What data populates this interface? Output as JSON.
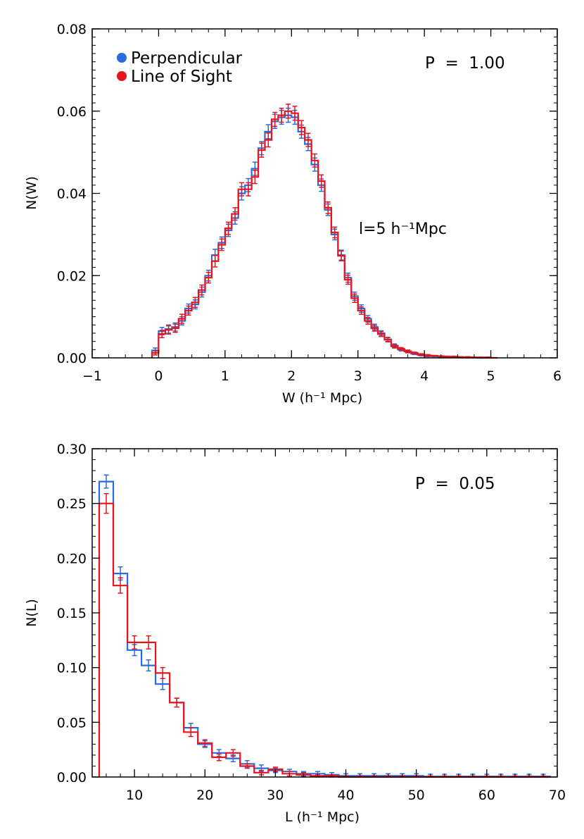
{
  "chart_data": [
    {
      "type": "step",
      "title": "",
      "xlabel": "W (h⁻¹ Mpc)",
      "ylabel": "N(W)",
      "xlim": [
        -1,
        6
      ],
      "ylim": [
        0,
        0.08
      ],
      "xticks": [
        "−1",
        "0",
        "1",
        "2",
        "3",
        "4",
        "5",
        "6"
      ],
      "yticks": [
        "0.00",
        "0.02",
        "0.04",
        "0.06",
        "0.08"
      ],
      "bin_width": 0.1,
      "legend": {
        "placement": "top-left",
        "entries": [
          "Perpendicular",
          "Line of Sight"
        ]
      },
      "annotations": [
        "P  =  1.00",
        "l=5 h⁻¹Mpc"
      ],
      "series": [
        {
          "name": "Perpendicular",
          "color": "#2b6be0",
          "edges": [
            -0.1,
            0.0,
            0.1,
            0.2,
            0.3,
            0.4,
            0.5,
            0.6,
            0.7,
            0.8,
            0.9,
            1.0,
            1.1,
            1.2,
            1.3,
            1.4,
            1.5,
            1.6,
            1.7,
            1.8,
            1.9,
            2.0,
            2.1,
            2.2,
            2.3,
            2.4,
            2.5,
            2.6,
            2.7,
            2.8,
            2.9,
            3.0,
            3.1,
            3.2,
            3.3,
            3.4,
            3.5,
            3.6,
            3.7,
            3.8,
            3.9,
            4.0,
            4.1,
            4.2,
            4.3,
            4.4,
            4.5,
            4.6,
            4.7,
            4.8,
            4.9,
            5.0
          ],
          "values": [
            0.0018,
            0.0065,
            0.007,
            0.0075,
            0.009,
            0.012,
            0.013,
            0.016,
            0.02,
            0.025,
            0.028,
            0.031,
            0.034,
            0.04,
            0.042,
            0.046,
            0.051,
            0.055,
            0.0575,
            0.0585,
            0.059,
            0.0585,
            0.055,
            0.052,
            0.047,
            0.042,
            0.036,
            0.03,
            0.025,
            0.0195,
            0.015,
            0.012,
            0.0095,
            0.0075,
            0.006,
            0.0045,
            0.003,
            0.002,
            0.0015,
            0.001,
            0.0007,
            0.0005,
            0.0004,
            0.0003,
            0.0002,
            0.0002,
            0.0001,
            0.0001,
            0.0001,
            0.0,
            0.0
          ],
          "errors": [
            0.0006,
            0.0009,
            0.001,
            0.001,
            0.001,
            0.0011,
            0.0011,
            0.0012,
            0.0013,
            0.0014,
            0.0014,
            0.0015,
            0.0015,
            0.0016,
            0.0016,
            0.0016,
            0.0016,
            0.0017,
            0.0017,
            0.0017,
            0.0017,
            0.0017,
            0.0016,
            0.0016,
            0.0016,
            0.0015,
            0.0014,
            0.0013,
            0.0012,
            0.0011,
            0.001,
            0.0009,
            0.0008,
            0.0007,
            0.0006,
            0.0005,
            0.0004,
            0.0003,
            0.0003,
            0.0002,
            0.0002,
            0.0002,
            0.0001,
            0.0001,
            0.0001,
            0.0001,
            0.0001,
            0.0001,
            0.0001,
            0.0,
            0.0
          ]
        },
        {
          "name": "Line of Sight",
          "color": "#e8141b",
          "edges": [
            -0.1,
            0.0,
            0.1,
            0.2,
            0.3,
            0.4,
            0.5,
            0.6,
            0.7,
            0.8,
            0.9,
            1.0,
            1.1,
            1.2,
            1.3,
            1.4,
            1.5,
            1.6,
            1.7,
            1.8,
            1.9,
            2.0,
            2.1,
            2.2,
            2.3,
            2.4,
            2.5,
            2.6,
            2.7,
            2.8,
            2.9,
            3.0,
            3.1,
            3.2,
            3.3,
            3.4,
            3.5,
            3.6,
            3.7,
            3.8,
            3.9,
            4.0,
            4.1,
            4.2,
            4.3,
            4.4,
            4.5,
            4.6,
            4.7,
            4.8,
            4.9,
            5.0,
            5.1
          ],
          "values": [
            0.0012,
            0.0058,
            0.0068,
            0.0072,
            0.0095,
            0.0115,
            0.0135,
            0.0165,
            0.0195,
            0.0235,
            0.0275,
            0.0315,
            0.035,
            0.041,
            0.041,
            0.044,
            0.0505,
            0.053,
            0.058,
            0.059,
            0.06,
            0.0595,
            0.056,
            0.053,
            0.048,
            0.043,
            0.0365,
            0.0305,
            0.0248,
            0.019,
            0.0145,
            0.0115,
            0.009,
            0.0072,
            0.0058,
            0.0044,
            0.0028,
            0.0022,
            0.0016,
            0.0012,
            0.0008,
            0.0006,
            0.0005,
            0.0004,
            0.0003,
            0.0003,
            0.0002,
            0.0002,
            0.0001,
            0.0001,
            0.0001,
            0.0
          ],
          "errors": [
            0.0005,
            0.0009,
            0.001,
            0.001,
            0.0011,
            0.0011,
            0.0012,
            0.0012,
            0.0013,
            0.0014,
            0.0014,
            0.0015,
            0.0015,
            0.0016,
            0.0016,
            0.0016,
            0.0017,
            0.0017,
            0.0017,
            0.0017,
            0.0017,
            0.0017,
            0.0017,
            0.0016,
            0.0016,
            0.0015,
            0.0014,
            0.0013,
            0.0012,
            0.0011,
            0.001,
            0.0009,
            0.0008,
            0.0007,
            0.0006,
            0.0005,
            0.0004,
            0.0003,
            0.0003,
            0.0002,
            0.0002,
            0.0002,
            0.0001,
            0.0001,
            0.0001,
            0.0001,
            0.0001,
            0.0001,
            0.0001,
            0.0001,
            0.0001,
            0.0
          ]
        }
      ]
    },
    {
      "type": "step",
      "title": "",
      "xlabel": "L (h⁻¹ Mpc)",
      "ylabel": "N(L)",
      "xlim": [
        4,
        70
      ],
      "ylim": [
        0,
        0.3
      ],
      "xticks": [
        "10",
        "20",
        "30",
        "40",
        "50",
        "60",
        "70"
      ],
      "yticks": [
        "0.00",
        "0.05",
        "0.10",
        "0.15",
        "0.20",
        "0.25",
        "0.30"
      ],
      "bin_width": 2,
      "annotations": [
        "P  =  0.05"
      ],
      "series": [
        {
          "name": "Perpendicular",
          "color": "#2b6be0",
          "edges": [
            5,
            7,
            9,
            11,
            13,
            15,
            17,
            19,
            21,
            23,
            25,
            27,
            29,
            31,
            33,
            35,
            37,
            39,
            41,
            43,
            45,
            47,
            49,
            51,
            53,
            55,
            57,
            59,
            61,
            63,
            65,
            67,
            69
          ],
          "values": [
            0.27,
            0.186,
            0.116,
            0.102,
            0.085,
            0.068,
            0.045,
            0.03,
            0.022,
            0.017,
            0.012,
            0.008,
            0.006,
            0.005,
            0.003,
            0.003,
            0.002,
            0.001,
            0.001,
            0.001,
            0.001,
            0.001,
            0.001,
            0.0005,
            0.0005,
            0.0005,
            0.0005,
            0.0005,
            0.0005,
            0.0005,
            0.0005,
            0.0005
          ],
          "errors": [
            0.006,
            0.006,
            0.005,
            0.005,
            0.005,
            0.004,
            0.004,
            0.003,
            0.003,
            0.003,
            0.003,
            0.003,
            0.002,
            0.002,
            0.002,
            0.002,
            0.002,
            0.002,
            0.002,
            0.002,
            0.002,
            0.002,
            0.002,
            0.002,
            0.002,
            0.002,
            0.002,
            0.002,
            0.002,
            0.002,
            0.002,
            0.002
          ]
        },
        {
          "name": "Line of Sight",
          "color": "#e8141b",
          "edges": [
            5,
            7,
            9,
            11,
            13,
            15,
            17,
            19,
            21,
            23,
            25,
            27,
            29,
            31,
            33,
            35,
            37,
            39,
            41,
            43,
            45,
            47,
            49,
            51,
            53,
            55,
            57,
            59,
            61,
            63,
            65,
            67,
            69
          ],
          "values": [
            0.25,
            0.175,
            0.123,
            0.123,
            0.095,
            0.068,
            0.041,
            0.031,
            0.018,
            0.022,
            0.01,
            0.004,
            0.007,
            0.003,
            0.002,
            0.001,
            0.001,
            0.0,
            0.0,
            0.0,
            0.0,
            0.0,
            0.0,
            0.0,
            0.0,
            0.0,
            0.0,
            0.0,
            0.0,
            0.0,
            0.0,
            0.0
          ],
          "errors": [
            0.009,
            0.007,
            0.006,
            0.006,
            0.005,
            0.004,
            0.004,
            0.003,
            0.003,
            0.003,
            0.002,
            0.002,
            0.002,
            0.002,
            0.002,
            0.001,
            0.001,
            0.001,
            0.001,
            0.001,
            0.001,
            0.001,
            0.001,
            0.001,
            0.001,
            0.001,
            0.001,
            0.001,
            0.001,
            0.001,
            0.001,
            0.001
          ]
        }
      ]
    }
  ]
}
